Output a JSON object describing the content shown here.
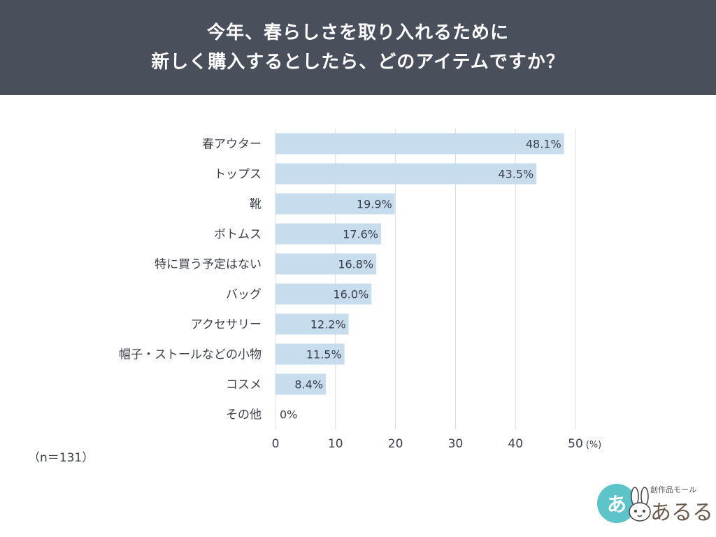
{
  "header": {
    "title_line1": "今年、春らしさを取り入れるために",
    "title_line2": "新しく購入するとしたら、どのアイテムですか？"
  },
  "sample_note": "（n＝131）",
  "logo": {
    "badge": "あ",
    "sub": "創作品モール",
    "brand": "あるる"
  },
  "colors": {
    "header_bg": "#4a4f5c",
    "bar": "#c7ddee",
    "text": "#3a3f4b",
    "grid": "#d9dce2"
  },
  "chart_data": {
    "type": "bar",
    "orientation": "horizontal",
    "categories": [
      "春アウター",
      "トップス",
      "靴",
      "ボトムス",
      "特に買う予定はない",
      "バッグ",
      "アクセサリー",
      "帽子・ストールなどの小物",
      "コスメ",
      "その他"
    ],
    "values": [
      48.1,
      43.5,
      19.9,
      17.6,
      16.8,
      16.0,
      12.2,
      11.5,
      8.4,
      0
    ],
    "value_labels": [
      "48.1%",
      "43.5%",
      "19.9%",
      "17.6%",
      "16.8%",
      "16.0%",
      "12.2%",
      "11.5%",
      "8.4%",
      "0%"
    ],
    "xlim": [
      0,
      50
    ],
    "xticks": [
      "0",
      "10",
      "20",
      "30",
      "40",
      "50"
    ],
    "xunit": "(%)",
    "grid": true
  }
}
